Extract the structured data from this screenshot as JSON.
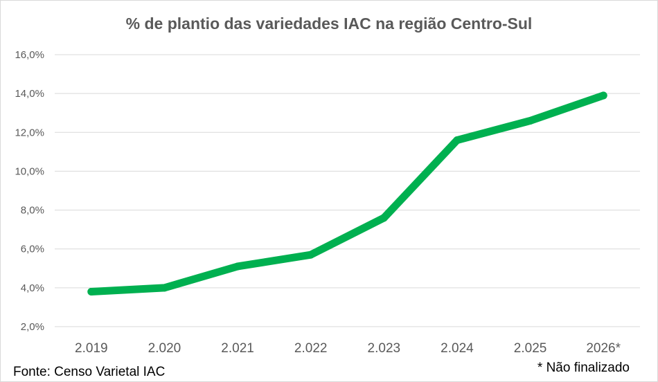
{
  "chart_data": {
    "type": "line",
    "title": "% de plantio das variedades IAC na região Centro-Sul",
    "xlabel": "",
    "ylabel": "",
    "categories": [
      "2.019",
      "2.020",
      "2.021",
      "2.022",
      "2.023",
      "2.024",
      "2.025",
      "2026*"
    ],
    "series": [
      {
        "values": [
          3.8,
          4.0,
          5.1,
          5.7,
          7.6,
          11.6,
          12.6,
          13.9
        ],
        "color": "#00b050"
      }
    ],
    "ylim": [
      2.0,
      16.0
    ],
    "y_ticks": [
      "2,0%",
      "4,0%",
      "6,0%",
      "8,0%",
      "10,0%",
      "12,0%",
      "14,0%",
      "16,0%"
    ],
    "grid": true,
    "legend": "none"
  },
  "footer": {
    "source": "Fonte: Censo Varietal IAC",
    "note": "* Não finalizado"
  },
  "colors": {
    "line": "#00b050",
    "grid": "#d9d9d9",
    "text": "#595959"
  }
}
